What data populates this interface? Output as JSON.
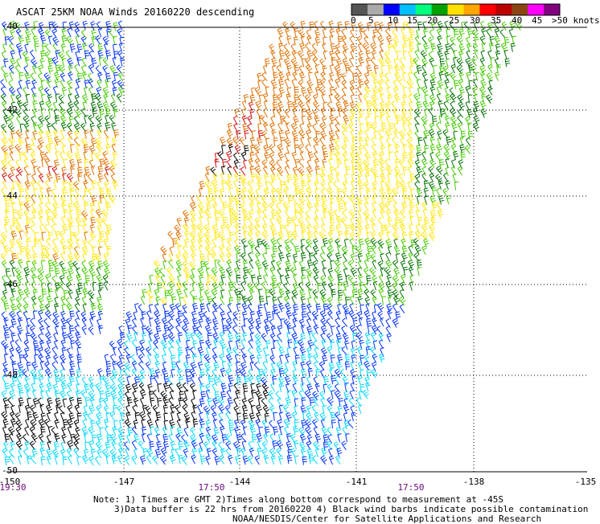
{
  "title": "ASCAT 25KM NOAA Winds 20160220 descending",
  "colorbar": {
    "ticks": [
      "0",
      "5",
      "10",
      "15",
      "20",
      "25",
      "30",
      "35",
      "40",
      "45"
    ],
    "units": ">50 knots",
    "colors": [
      "#555555",
      "#aaaaaa",
      "#0000ff",
      "#00bfff",
      "#00ff7f",
      "#00a000",
      "#ffe000",
      "#ffa500",
      "#ff0000",
      "#bb0000",
      "#8b4513",
      "#ff00ff",
      "#800080"
    ]
  },
  "map": {
    "lat_labels": [
      "-40",
      "-42",
      "-44",
      "-46",
      "-48",
      "-50"
    ],
    "lon_labels": [
      "-150",
      "-147",
      "-144",
      "-141",
      "-138",
      "-135"
    ],
    "time_labels": [
      "19:30",
      "17:50",
      "17:50"
    ],
    "barb_colors": {
      "black": "#000000",
      "cyan": "#00d8ff",
      "blue": "#0030ff",
      "green_light": "#44cc00",
      "green_dark": "#007000",
      "yellow": "#ffe600",
      "orange": "#e07000",
      "red": "#d01010"
    },
    "contamination_barbs_color": "black"
  },
  "notes": {
    "line1": "Note: 1) Times are GMT 2)Times along bottom correspond to measurement at -45S",
    "line2": "3)Data buffer is 22 hrs from 20160220 4) Black wind barbs indicate possible contamination",
    "line3": "NOAA/NESDIS/Center for Satellite Applications and Research"
  }
}
